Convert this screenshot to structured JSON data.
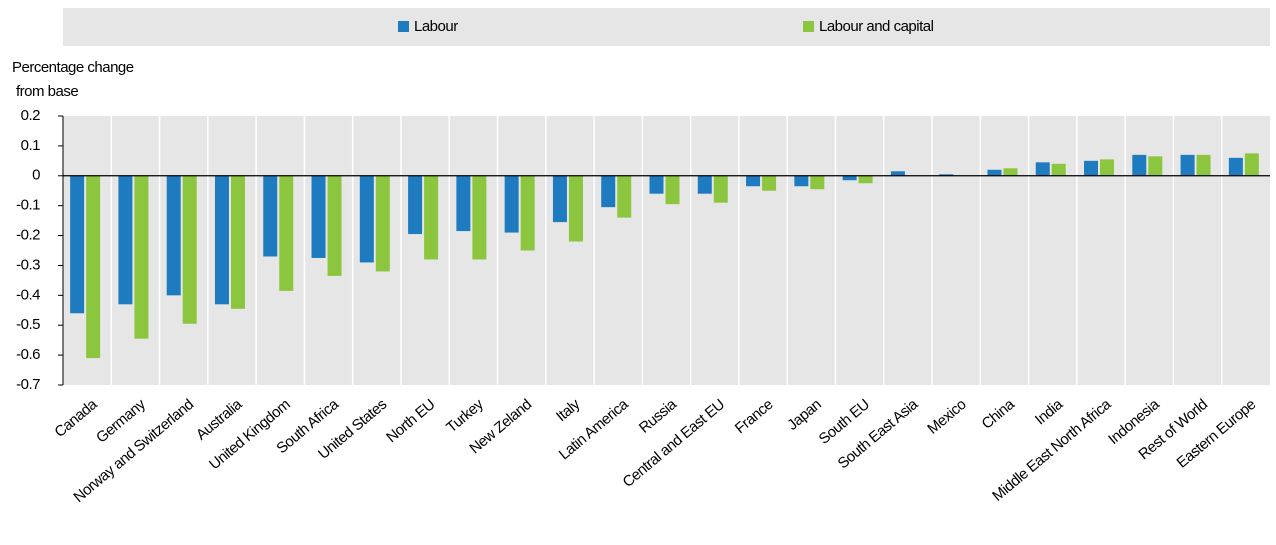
{
  "chart_data": {
    "type": "bar",
    "ylabel": [
      "Percentage change",
      "from base"
    ],
    "categories": [
      "Canada",
      "Germany",
      "Norway and Switzerland",
      "Australia",
      "United Kingdom",
      "South Africa",
      "United States",
      "North EU",
      "Turkey",
      "New Zeland",
      "Italy",
      "Latin America",
      "Russia",
      "Central and East EU",
      "France",
      "Japan",
      "South EU",
      "South East Asia",
      "Mexico",
      "China",
      "India",
      "Middle East North Africa",
      "Indonesia",
      "Rest of World",
      "Eastern Europe"
    ],
    "series": [
      {
        "name": "Labour",
        "color": "#1f7bbf",
        "values": [
          -0.46,
          -0.43,
          -0.4,
          -0.43,
          -0.27,
          -0.275,
          -0.29,
          -0.195,
          -0.185,
          -0.19,
          -0.155,
          -0.105,
          -0.06,
          -0.06,
          -0.035,
          -0.035,
          -0.015,
          0.015,
          0.005,
          0.02,
          0.045,
          0.05,
          0.07,
          0.07,
          0.06
        ]
      },
      {
        "name": "Labour and capital",
        "color": "#8cc63f",
        "values": [
          -0.61,
          -0.545,
          -0.495,
          -0.445,
          -0.385,
          -0.335,
          -0.32,
          -0.28,
          -0.28,
          -0.25,
          -0.22,
          -0.14,
          -0.095,
          -0.09,
          -0.05,
          -0.045,
          -0.025,
          0,
          0,
          0.025,
          0.04,
          0.055,
          0.065,
          0.07,
          0.075
        ]
      }
    ],
    "ylim": [
      -0.7,
      0.2
    ],
    "yticks": [
      0.2,
      0.1,
      0,
      -0.1,
      -0.2,
      -0.3,
      -0.4,
      -0.5,
      -0.6,
      -0.7
    ],
    "legend": "top"
  }
}
